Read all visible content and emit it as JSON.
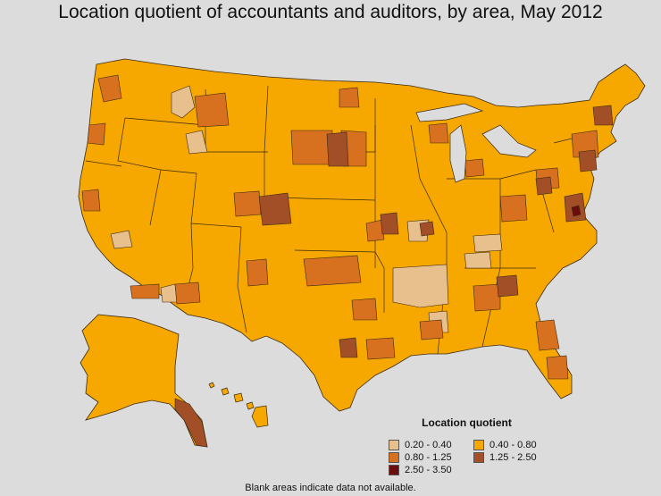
{
  "title": "Location quotient of accountants and auditors, by area, May 2012",
  "legend": {
    "title": "Location quotient",
    "items": [
      {
        "label": "0.20 - 0.40",
        "color": "#e8c08e"
      },
      {
        "label": "0.40 - 0.80",
        "color": "#f7a800"
      },
      {
        "label": "0.80 - 1.25",
        "color": "#d8711f"
      },
      {
        "label": "1.25 - 2.50",
        "color": "#a24f27"
      },
      {
        "label": "2.50 - 3.50",
        "color": "#6b0d0d"
      }
    ]
  },
  "note": "Blank areas indicate data not available.",
  "colors": {
    "background": "#dcdcdc",
    "base": "#f7a800",
    "border": "#3b2a10"
  }
}
